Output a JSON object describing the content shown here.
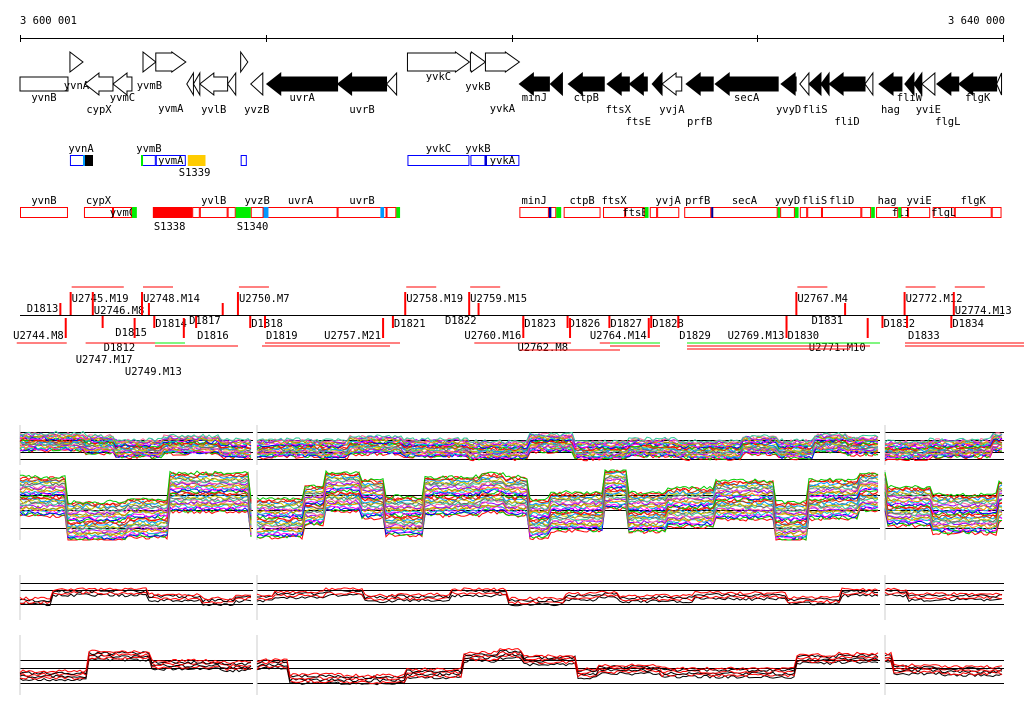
{
  "ruler": {
    "start_label": "3 600 001",
    "end_label": "3 640 000",
    "start_bp": 3600001,
    "end_bp": 3640000
  },
  "genes": [
    {
      "name": "yvnB",
      "s": 0.0,
      "e": 1.95,
      "strand": "+",
      "filled": false,
      "row": "low",
      "head": false
    },
    {
      "name": "yvnA",
      "s": 2.03,
      "e": 2.56,
      "strand": "+",
      "filled": false,
      "row": "up"
    },
    {
      "name": "cypX",
      "s": 2.64,
      "e": 3.78,
      "strand": "-",
      "filled": false,
      "row": "low"
    },
    {
      "name": "yvmC",
      "s": 3.78,
      "e": 4.55,
      "strand": "-",
      "filled": false,
      "row": "low"
    },
    {
      "name": "yvmB",
      "s": 5.0,
      "e": 5.52,
      "strand": "+",
      "filled": false,
      "row": "up"
    },
    {
      "name": "yvmA",
      "s": 5.52,
      "e": 6.74,
      "strand": "+",
      "filled": false,
      "row": "up"
    },
    {
      "name": "",
      "s": 6.78,
      "e": 7.05,
      "strand": "-",
      "filled": false,
      "row": "low"
    },
    {
      "name": "",
      "s": 7.05,
      "e": 7.31,
      "strand": "-",
      "filled": false,
      "row": "low"
    },
    {
      "name": "yvlB",
      "s": 7.31,
      "e": 8.44,
      "strand": "-",
      "filled": false,
      "row": "low"
    },
    {
      "name": "",
      "s": 8.44,
      "e": 8.77,
      "strand": "-",
      "filled": false,
      "row": "low"
    },
    {
      "name": "",
      "s": 8.97,
      "e": 9.26,
      "strand": "+",
      "filled": false,
      "row": "up"
    },
    {
      "name": "yvzB",
      "s": 9.38,
      "e": 9.87,
      "strand": "-",
      "filled": false,
      "row": "low"
    },
    {
      "name": "uvrA",
      "s": 10.03,
      "e": 12.91,
      "strand": "-",
      "filled": true,
      "row": "low"
    },
    {
      "name": "uvrB",
      "s": 12.91,
      "e": 14.9,
      "strand": "-",
      "filled": true,
      "row": "low"
    },
    {
      "name": "",
      "s": 14.9,
      "e": 15.31,
      "strand": "-",
      "filled": false,
      "row": "low"
    },
    {
      "name": "yvkC",
      "s": 15.75,
      "e": 18.27,
      "strand": "+",
      "filled": false,
      "row": "up"
    },
    {
      "name": "yvkB",
      "s": 18.31,
      "e": 18.92,
      "strand": "+",
      "filled": false,
      "row": "up"
    },
    {
      "name": "yvkA",
      "s": 18.92,
      "e": 20.3,
      "strand": "+",
      "filled": false,
      "row": "up"
    },
    {
      "name": "minJ",
      "s": 20.3,
      "e": 21.52,
      "strand": "-",
      "filled": true,
      "row": "low"
    },
    {
      "name": "",
      "s": 21.56,
      "e": 22.05,
      "strand": "-",
      "filled": true,
      "row": "low"
    },
    {
      "name": "ctpB",
      "s": 22.29,
      "e": 23.75,
      "strand": "-",
      "filled": true,
      "row": "low"
    },
    {
      "name": "ftsX",
      "s": 23.87,
      "e": 24.77,
      "strand": "-",
      "filled": true,
      "row": "low"
    },
    {
      "name": "ftsE",
      "s": 24.77,
      "e": 25.5,
      "strand": "-",
      "filled": true,
      "row": "low"
    },
    {
      "name": "",
      "s": 25.7,
      "e": 26.1,
      "strand": "-",
      "filled": true,
      "row": "low"
    },
    {
      "name": "yvjA",
      "s": 26.1,
      "e": 26.9,
      "strand": "-",
      "filled": false,
      "row": "low"
    },
    {
      "name": "prfB",
      "s": 27.08,
      "e": 28.18,
      "strand": "-",
      "filled": true,
      "row": "low"
    },
    {
      "name": "secA",
      "s": 28.26,
      "e": 30.82,
      "strand": "-",
      "filled": true,
      "row": "low"
    },
    {
      "name": "yvyD",
      "s": 30.94,
      "e": 31.55,
      "strand": "-",
      "filled": true,
      "row": "low"
    },
    {
      "name": "",
      "s": 31.7,
      "e": 32.07,
      "strand": "-",
      "filled": false,
      "row": "low"
    },
    {
      "name": "fliS",
      "s": 32.07,
      "e": 32.56,
      "strand": "-",
      "filled": true,
      "row": "low"
    },
    {
      "name": "",
      "s": 32.56,
      "e": 32.89,
      "strand": "-",
      "filled": true,
      "row": "low"
    },
    {
      "name": "fliD",
      "s": 32.89,
      "e": 34.35,
      "strand": "-",
      "filled": true,
      "row": "low"
    },
    {
      "name": "",
      "s": 34.35,
      "e": 34.67,
      "strand": "-",
      "filled": false,
      "row": "low"
    },
    {
      "name": "hag",
      "s": 34.92,
      "e": 35.85,
      "strand": "-",
      "filled": true,
      "row": "low"
    },
    {
      "name": "fliW",
      "s": 35.97,
      "e": 36.34,
      "strand": "-",
      "filled": true,
      "row": "low"
    },
    {
      "name": "",
      "s": 36.34,
      "e": 36.66,
      "strand": "-",
      "filled": true,
      "row": "low"
    },
    {
      "name": "yviE",
      "s": 36.66,
      "e": 37.19,
      "strand": "-",
      "filled": false,
      "row": "low"
    },
    {
      "name": "flgL",
      "s": 37.27,
      "e": 38.16,
      "strand": "-",
      "filled": true,
      "row": "low"
    },
    {
      "name": "flgK",
      "s": 38.16,
      "e": 39.7,
      "strand": "-",
      "filled": true,
      "row": "low"
    },
    {
      "name": "",
      "s": 39.7,
      "e": 39.9,
      "strand": "-",
      "filled": false,
      "row": "low"
    }
  ],
  "operons_forward": [
    {
      "name": "yvnA",
      "s": 2.03,
      "e": 2.93,
      "color": "#0000ff"
    },
    {
      "name": "yvmB",
      "s": 4.96,
      "e": 5.52,
      "color": "#0000ff"
    },
    {
      "name": "yvmA",
      "s": 5.52,
      "e": 6.74,
      "color": "#0000ff"
    },
    {
      "name": "",
      "s": 8.97,
      "e": 9.22,
      "color": "#0000ff"
    },
    {
      "name": "yvkC",
      "s": 15.75,
      "e": 18.27,
      "color": "#0000ff"
    },
    {
      "name": "yvkB",
      "s": 18.31,
      "e": 18.92,
      "color": "#0000ff"
    },
    {
      "name": "yvkA",
      "s": 18.92,
      "e": 20.3,
      "color": "#0000ff"
    }
  ],
  "segments_forward": [
    {
      "name": "S1339",
      "s": 6.78,
      "e": 7.5,
      "color": "#ffcc00"
    }
  ],
  "operons_reverse": [
    {
      "name": "yvnB",
      "s": 0.0,
      "e": 1.95
    },
    {
      "name": "cypX",
      "s": 2.6,
      "e": 3.78
    },
    {
      "name": "yvmC",
      "s": 3.78,
      "e": 4.55
    },
    {
      "name": "",
      "s": 7.0,
      "e": 7.31
    },
    {
      "name": "yvlB",
      "s": 7.31,
      "e": 8.44
    },
    {
      "name": "",
      "s": 8.44,
      "e": 8.77
    },
    {
      "name": "yvzB",
      "s": 9.38,
      "e": 9.9
    },
    {
      "name": "uvrA",
      "s": 9.9,
      "e": 12.91
    },
    {
      "name": "uvrB",
      "s": 12.91,
      "e": 14.9
    },
    {
      "name": "",
      "s": 14.9,
      "e": 15.3
    },
    {
      "name": "minJ",
      "s": 20.3,
      "e": 21.5
    },
    {
      "name": "",
      "s": 21.5,
      "e": 21.8
    },
    {
      "name": "ctpB",
      "s": 22.1,
      "e": 23.6
    },
    {
      "name": "ftsX",
      "s": 23.7,
      "e": 24.6
    },
    {
      "name": "ftsE",
      "s": 24.6,
      "e": 25.4
    },
    {
      "name": "",
      "s": 25.6,
      "e": 25.9
    },
    {
      "name": "yvjA",
      "s": 25.9,
      "e": 26.8
    },
    {
      "name": "prfB",
      "s": 27.0,
      "e": 28.1
    },
    {
      "name": "secA",
      "s": 28.1,
      "e": 30.8
    },
    {
      "name": "yvyD",
      "s": 30.9,
      "e": 31.5
    },
    {
      "name": "",
      "s": 31.7,
      "e": 32.0
    },
    {
      "name": "fliS",
      "s": 32.0,
      "e": 32.6
    },
    {
      "name": "fliD",
      "s": 32.6,
      "e": 34.2
    },
    {
      "name": "",
      "s": 34.2,
      "e": 34.6
    },
    {
      "name": "hag",
      "s": 34.8,
      "e": 35.7
    },
    {
      "name": "fliW",
      "s": 35.8,
      "e": 36.1
    },
    {
      "name": "yviE",
      "s": 36.1,
      "e": 37.0
    },
    {
      "name": "flgL",
      "s": 37.1,
      "e": 38.0
    },
    {
      "name": "flgK",
      "s": 38.0,
      "e": 39.5
    },
    {
      "name": "",
      "s": 39.5,
      "e": 39.9
    }
  ],
  "segments_reverse": [
    {
      "name": "S1338",
      "s": 5.4,
      "e": 7.0,
      "color": "#ff0000"
    },
    {
      "name": "S1340",
      "s": 8.77,
      "e": 9.38,
      "color": "#00ee00"
    }
  ],
  "markers_reverse": [
    {
      "s": 4.55,
      "e": 4.75,
      "color": "#00ee00"
    },
    {
      "s": 14.65,
      "e": 14.8,
      "color": "#0099ff"
    },
    {
      "s": 15.3,
      "e": 15.45,
      "color": "#00ee00"
    },
    {
      "s": 9.9,
      "e": 10.1,
      "color": "#0099ff"
    },
    {
      "s": 21.5,
      "e": 21.6,
      "color": "#000099"
    },
    {
      "s": 21.8,
      "e": 22.0,
      "color": "#00ee00"
    },
    {
      "s": 25.4,
      "e": 25.55,
      "color": "#00ee00"
    },
    {
      "s": 28.1,
      "e": 28.18,
      "color": "#000099"
    },
    {
      "s": 30.8,
      "e": 30.9,
      "color": "#00ee00"
    },
    {
      "s": 31.5,
      "e": 31.65,
      "color": "#00ee00"
    },
    {
      "s": 34.6,
      "e": 34.75,
      "color": "#00ee00"
    },
    {
      "s": 35.7,
      "e": 35.82,
      "color": "#00ee00"
    }
  ],
  "transcripts_upper": [
    {
      "label": "U2745.M19",
      "x": 2.1
    },
    {
      "label": "U2746.M8",
      "x": 3.0
    },
    {
      "label": "U2748.M14",
      "x": 5.0
    },
    {
      "label": "U2750.M7",
      "x": 8.9
    },
    {
      "label": "U2758.M19",
      "x": 15.7
    },
    {
      "label": "U2759.M15",
      "x": 18.3
    },
    {
      "label": "U2767.M4",
      "x": 31.6
    },
    {
      "label": "U2772.M12",
      "x": 36.0
    },
    {
      "label": "U2774.M13",
      "x": 38.0
    }
  ],
  "terminators_upper": [
    {
      "label": "D1813",
      "x": 1.6
    },
    {
      "label": "D1815",
      "x": 5.2
    },
    {
      "label": "D1817",
      "x": 8.2
    },
    {
      "label": "D1822",
      "x": 18.6
    },
    {
      "label": "D1831",
      "x": 33.5
    }
  ],
  "terminators_lower": [
    {
      "label": "D1812",
      "x": 3.4
    },
    {
      "label": "D1814",
      "x": 5.5
    },
    {
      "label": "D1816",
      "x": 7.2
    },
    {
      "label": "D1818",
      "x": 9.4
    },
    {
      "label": "D1819",
      "x": 10.0
    },
    {
      "label": "D1821",
      "x": 15.2
    },
    {
      "label": "D1823",
      "x": 20.5
    },
    {
      "label": "D1826",
      "x": 22.3
    },
    {
      "label": "D1827",
      "x": 24.0
    },
    {
      "label": "D1828",
      "x": 25.7
    },
    {
      "label": "D1829",
      "x": 26.8
    },
    {
      "label": "D1830",
      "x": 31.2
    },
    {
      "label": "D1832",
      "x": 35.1
    },
    {
      "label": "D1833",
      "x": 36.1
    },
    {
      "label": "D1834",
      "x": 37.9
    }
  ],
  "transcripts_lower": [
    {
      "label": "U2744.M8",
      "x": 1.9
    },
    {
      "label": "U2747.M17",
      "x": 4.7
    },
    {
      "label": "U2749.M13",
      "x": 6.7
    },
    {
      "label": "U2757.M21",
      "x": 14.8
    },
    {
      "label": "U2760.M16",
      "x": 20.5
    },
    {
      "label": "U2762.M8",
      "x": 22.4
    },
    {
      "label": "U2764.M14",
      "x": 25.6
    },
    {
      "label": "U2769.M13",
      "x": 31.2
    },
    {
      "label": "U2771.M10",
      "x": 34.5
    }
  ],
  "colors": {
    "forward": "#0000ff",
    "reverse": "#ff0000",
    "accent_green": "#00ee00"
  }
}
